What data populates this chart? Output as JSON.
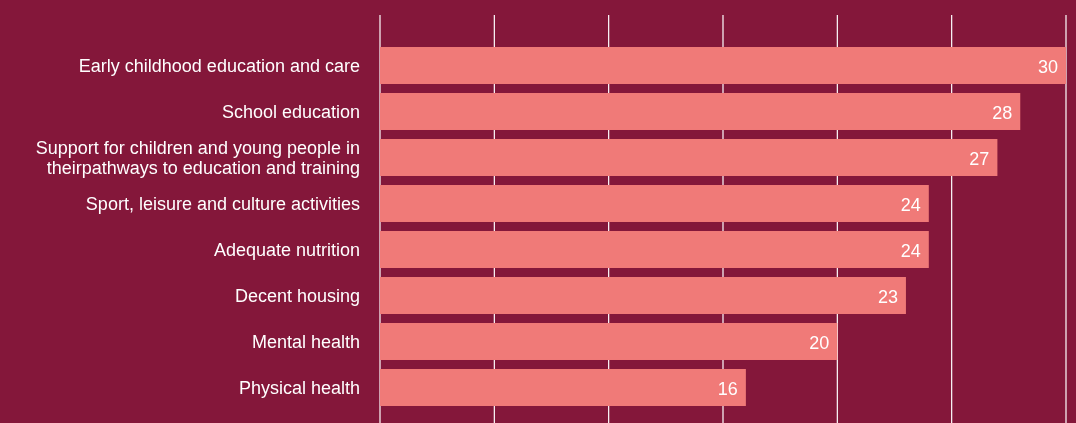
{
  "chart_data": {
    "type": "bar",
    "orientation": "horizontal",
    "categories": [
      "Early childhood education and care",
      "School education",
      "Support for children and young people in\ntheirpathways to education and training",
      "Sport, leisure and culture activities",
      "Adequate nutrition",
      "Decent housing",
      "Mental health",
      "Physical health"
    ],
    "values": [
      30,
      28,
      27,
      24,
      24,
      23,
      20,
      16
    ],
    "color": "#f07a78",
    "xlim": [
      0,
      30
    ],
    "xticks": [
      {
        "value": 0,
        "label": null
      },
      {
        "value": 5,
        "label": null
      },
      {
        "value": 10,
        "label": null
      },
      {
        "value": 15,
        "label": null
      },
      {
        "value": 20,
        "label": null
      },
      {
        "value": 25,
        "label": null
      },
      {
        "value": 30,
        "label": null
      }
    ],
    "grid": "x",
    "tick_labels": "y",
    "data_labels": true
  }
}
